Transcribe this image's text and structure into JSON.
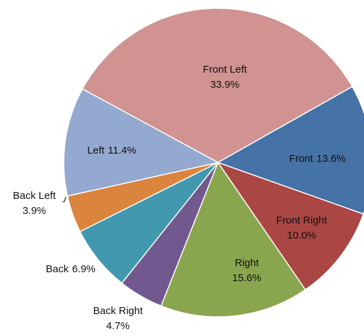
{
  "chart_data": {
    "type": "pie",
    "categories": [
      "Front Left",
      "Front",
      "Front Right",
      "Right",
      "Back Right",
      "Back",
      "Back Left",
      "Left"
    ],
    "values": [
      33.9,
      13.6,
      10.0,
      15.6,
      4.7,
      6.9,
      3.9,
      11.4
    ],
    "value_labels": [
      "33.9%",
      "13.6%",
      "10.0%",
      "15.6%",
      "4.7%",
      "6.9%",
      "3.9%",
      "11.4%"
    ],
    "colors": [
      "#d09392",
      "#4572a7",
      "#aa4643",
      "#89a54e",
      "#71588f",
      "#4198af",
      "#db843d",
      "#93a9cf"
    ]
  }
}
